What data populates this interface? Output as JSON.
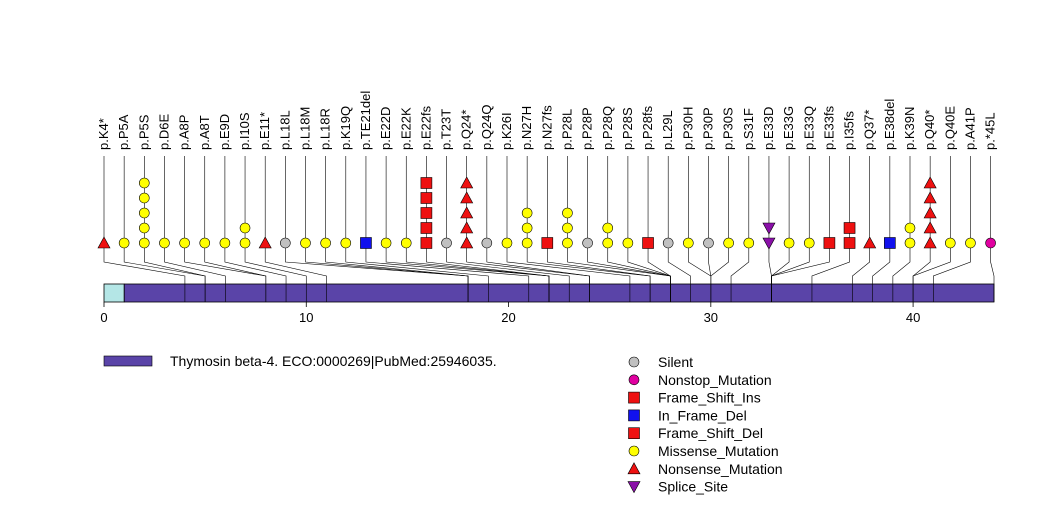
{
  "chart_data": {
    "type": "lollipop",
    "xlim": [
      0,
      44
    ],
    "x_ticks": [
      0,
      10,
      20,
      30,
      40
    ],
    "protein_domains": [
      {
        "name": "Thymosin beta-4. ECO:0000269|PubMed:25946035.",
        "start": 1,
        "end": 44,
        "color": "#5a44a8"
      }
    ],
    "unannotated_region_color": "#b4e6e6",
    "legend_domain_label": "Thymosin beta-4. ECO:0000269|PubMed:25946035.",
    "mutation_types": [
      {
        "name": "Silent",
        "shape": "circle",
        "color": "#c0c0c0"
      },
      {
        "name": "Nonstop_Mutation",
        "shape": "circle",
        "color": "#e000a0"
      },
      {
        "name": "Frame_Shift_Ins",
        "shape": "square",
        "color": "#ee1111"
      },
      {
        "name": "In_Frame_Del",
        "shape": "square",
        "color": "#1111ee"
      },
      {
        "name": "Frame_Shift_Del",
        "shape": "square",
        "color": "#ee1111"
      },
      {
        "name": "Missense_Mutation",
        "shape": "circle",
        "color": "#ffff00"
      },
      {
        "name": "Nonsense_Mutation",
        "shape": "triangle",
        "color": "#ee1111"
      },
      {
        "name": "Splice_Site",
        "shape": "triangle-down",
        "color": "#8a10a8"
      }
    ],
    "mutations": [
      {
        "label": "p.K4*",
        "pos": 4,
        "type": "Nonsense_Mutation",
        "count": 1
      },
      {
        "label": "p.P5A",
        "pos": 5,
        "type": "Missense_Mutation",
        "count": 1
      },
      {
        "label": "p.P5S",
        "pos": 5,
        "type": "Missense_Mutation",
        "count": 5
      },
      {
        "label": "p.D6E",
        "pos": 6,
        "type": "Missense_Mutation",
        "count": 1
      },
      {
        "label": "p.A8P",
        "pos": 8,
        "type": "Missense_Mutation",
        "count": 1
      },
      {
        "label": "p.A8T",
        "pos": 8,
        "type": "Missense_Mutation",
        "count": 1
      },
      {
        "label": "p.E9D",
        "pos": 9,
        "type": "Missense_Mutation",
        "count": 1
      },
      {
        "label": "p.I10S",
        "pos": 10,
        "type": "Missense_Mutation",
        "count": 2
      },
      {
        "label": "p.E11*",
        "pos": 11,
        "type": "Nonsense_Mutation",
        "count": 1
      },
      {
        "label": "p.L18L",
        "pos": 18,
        "type": "Silent",
        "count": 1
      },
      {
        "label": "p.L18M",
        "pos": 18,
        "type": "Missense_Mutation",
        "count": 1
      },
      {
        "label": "p.L18R",
        "pos": 18,
        "type": "Missense_Mutation",
        "count": 1
      },
      {
        "label": "p.K19Q",
        "pos": 19,
        "type": "Missense_Mutation",
        "count": 1
      },
      {
        "label": "p.TE21del",
        "pos": 21,
        "type": "In_Frame_Del",
        "count": 1
      },
      {
        "label": "p.E22D",
        "pos": 22,
        "type": "Missense_Mutation",
        "count": 1
      },
      {
        "label": "p.E22K",
        "pos": 22,
        "type": "Missense_Mutation",
        "count": 1
      },
      {
        "label": "p.E22fs",
        "pos": 22,
        "type": "Frame_Shift_Ins",
        "count": 5
      },
      {
        "label": "p.T23T",
        "pos": 23,
        "type": "Silent",
        "count": 1
      },
      {
        "label": "p.Q24*",
        "pos": 24,
        "type": "Nonsense_Mutation",
        "count": 5
      },
      {
        "label": "p.Q24Q",
        "pos": 24,
        "type": "Silent",
        "count": 1
      },
      {
        "label": "p.K26I",
        "pos": 26,
        "type": "Missense_Mutation",
        "count": 1
      },
      {
        "label": "p.N27H",
        "pos": 27,
        "type": "Missense_Mutation",
        "count": 3
      },
      {
        "label": "p.N27fs",
        "pos": 27,
        "type": "Frame_Shift_Del",
        "count": 1
      },
      {
        "label": "p.P28L",
        "pos": 28,
        "type": "Missense_Mutation",
        "count": 3
      },
      {
        "label": "p.P28P",
        "pos": 28,
        "type": "Silent",
        "count": 1
      },
      {
        "label": "p.P28Q",
        "pos": 28,
        "type": "Missense_Mutation",
        "count": 2
      },
      {
        "label": "p.P28S",
        "pos": 28,
        "type": "Missense_Mutation",
        "count": 1
      },
      {
        "label": "p.P28fs",
        "pos": 28,
        "type": "Frame_Shift_Del",
        "count": 1
      },
      {
        "label": "p.L29L",
        "pos": 29,
        "type": "Silent",
        "count": 1
      },
      {
        "label": "p.P30H",
        "pos": 30,
        "type": "Missense_Mutation",
        "count": 1
      },
      {
        "label": "p.P30P",
        "pos": 30,
        "type": "Silent",
        "count": 1
      },
      {
        "label": "p.P30S",
        "pos": 30,
        "type": "Missense_Mutation",
        "count": 1
      },
      {
        "label": "p.S31F",
        "pos": 31,
        "type": "Missense_Mutation",
        "count": 1
      },
      {
        "label": "p.E33D",
        "pos": 33,
        "type": "Splice_Site",
        "count": 2
      },
      {
        "label": "p.E33G",
        "pos": 33,
        "type": "Missense_Mutation",
        "count": 1
      },
      {
        "label": "p.E33Q",
        "pos": 33,
        "type": "Missense_Mutation",
        "count": 1
      },
      {
        "label": "p.E33fs",
        "pos": 33,
        "type": "Frame_Shift_Del",
        "count": 1
      },
      {
        "label": "p.I35fs",
        "pos": 35,
        "type": "Frame_Shift_Del",
        "count": 2
      },
      {
        "label": "p.Q37*",
        "pos": 37,
        "type": "Nonsense_Mutation",
        "count": 1
      },
      {
        "label": "p.E38del",
        "pos": 38,
        "type": "In_Frame_Del",
        "count": 1
      },
      {
        "label": "p.K39N",
        "pos": 39,
        "type": "Missense_Mutation",
        "count": 2
      },
      {
        "label": "p.Q40*",
        "pos": 40,
        "type": "Nonsense_Mutation",
        "count": 5
      },
      {
        "label": "p.Q40E",
        "pos": 40,
        "type": "Missense_Mutation",
        "count": 1
      },
      {
        "label": "p.A41P",
        "pos": 41,
        "type": "Missense_Mutation",
        "count": 1
      },
      {
        "label": "p.*45L",
        "pos": 45,
        "type": "Nonstop_Mutation",
        "count": 1
      }
    ]
  }
}
